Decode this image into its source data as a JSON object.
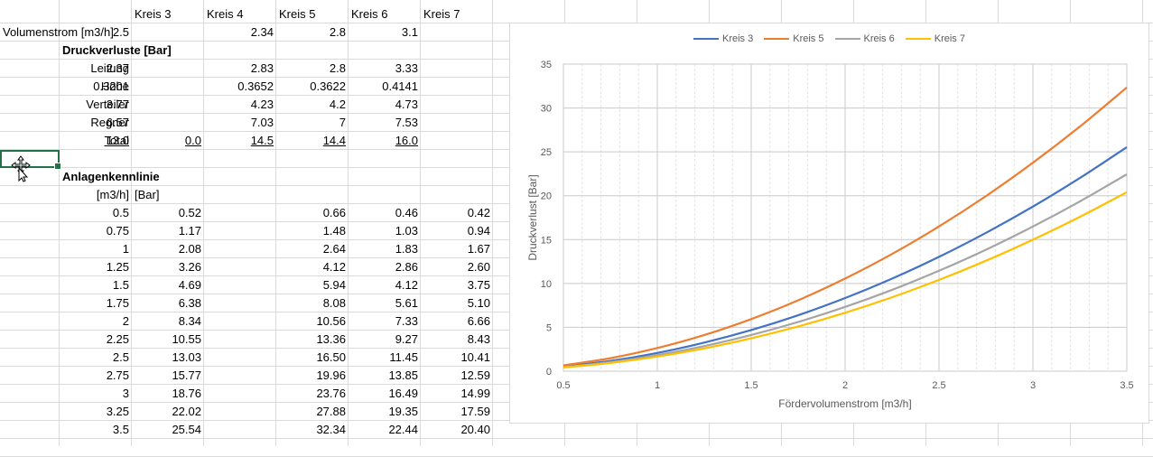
{
  "sheet": {
    "header_row": [
      "Kreis 3",
      "Kreis 4",
      "Kreis 5",
      "Kreis 6",
      "Kreis 7"
    ],
    "volumenstrom": {
      "label": "Volumenstrom [m3/h]",
      "values": [
        "2.5",
        "",
        "2.34",
        "2.8",
        "3.1"
      ]
    },
    "druckverluste_heading": "Druckverluste [Bar]",
    "loss_rows": [
      {
        "label": "Leitung",
        "values": [
          "2.37",
          "",
          "2.83",
          "2.8",
          "3.33"
        ]
      },
      {
        "label": "Höhe",
        "values": [
          "0.3201",
          "",
          "0.3652",
          "0.3622",
          "0.4141"
        ]
      },
      {
        "label": "Verteiler",
        "values": [
          "3.77",
          "",
          "4.23",
          "4.2",
          "4.73"
        ]
      },
      {
        "label": "Regner",
        "values": [
          "6.57",
          "",
          "7.03",
          "7",
          "7.53"
        ]
      }
    ],
    "total": {
      "label": "Total",
      "values": [
        "13.0",
        "0.0",
        "14.5",
        "14.4",
        "16.0"
      ]
    },
    "anlagen_heading": "Anlagenkennlinie",
    "unit_m3h": "[m3/h]",
    "unit_bar": "[Bar]",
    "kennlinie_rows": [
      [
        "0.5",
        "0.52",
        "0.66",
        "0.46",
        "0.42"
      ],
      [
        "0.75",
        "1.17",
        "1.48",
        "1.03",
        "0.94"
      ],
      [
        "1",
        "2.08",
        "2.64",
        "1.83",
        "1.67"
      ],
      [
        "1.25",
        "3.26",
        "4.12",
        "2.86",
        "2.60"
      ],
      [
        "1.5",
        "4.69",
        "5.94",
        "4.12",
        "3.75"
      ],
      [
        "1.75",
        "6.38",
        "8.08",
        "5.61",
        "5.10"
      ],
      [
        "2",
        "8.34",
        "10.56",
        "7.33",
        "6.66"
      ],
      [
        "2.25",
        "10.55",
        "13.36",
        "9.27",
        "8.43"
      ],
      [
        "2.5",
        "13.03",
        "16.50",
        "11.45",
        "10.41"
      ],
      [
        "2.75",
        "15.77",
        "19.96",
        "13.85",
        "12.59"
      ],
      [
        "3",
        "18.76",
        "23.76",
        "16.49",
        "14.99"
      ],
      [
        "3.25",
        "22.02",
        "27.88",
        "19.35",
        "17.59"
      ],
      [
        "3.5",
        "25.54",
        "32.34",
        "22.44",
        "20.40"
      ]
    ]
  },
  "chart_data": {
    "type": "line",
    "title": "",
    "xlabel": "Fördervolumenstrom [m3/h]",
    "ylabel": "Druckverlust [Bar]",
    "xlim": [
      0.5,
      3.5
    ],
    "ylim": [
      0,
      35
    ],
    "x_ticks": [
      "0.5",
      "1",
      "1.5",
      "2",
      "2.5",
      "3",
      "3.5"
    ],
    "y_ticks": [
      "0",
      "5",
      "10",
      "15",
      "20",
      "25",
      "30",
      "35"
    ],
    "x": [
      0.5,
      0.75,
      1,
      1.25,
      1.5,
      1.75,
      2,
      2.25,
      2.5,
      2.75,
      3,
      3.25,
      3.5
    ],
    "series": [
      {
        "name": "Kreis 3",
        "color": "#4472c4",
        "values": [
          0.52,
          1.17,
          2.08,
          3.26,
          4.69,
          6.38,
          8.34,
          10.55,
          13.03,
          15.77,
          18.76,
          22.02,
          25.54
        ]
      },
      {
        "name": "Kreis 5",
        "color": "#ed7d31",
        "values": [
          0.66,
          1.48,
          2.64,
          4.12,
          5.94,
          8.08,
          10.56,
          13.36,
          16.5,
          19.96,
          23.76,
          27.88,
          32.34
        ]
      },
      {
        "name": "Kreis 6",
        "color": "#a5a5a5",
        "values": [
          0.46,
          1.03,
          1.83,
          2.86,
          4.12,
          5.61,
          7.33,
          9.27,
          11.45,
          13.85,
          16.49,
          19.35,
          22.44
        ]
      },
      {
        "name": "Kreis 7",
        "color": "#ffc000",
        "values": [
          0.42,
          0.94,
          1.67,
          2.6,
          3.75,
          5.1,
          6.66,
          8.43,
          10.41,
          12.59,
          14.99,
          17.59,
          20.4
        ]
      }
    ],
    "grid": true,
    "minor_grid": true,
    "legend": "top"
  }
}
